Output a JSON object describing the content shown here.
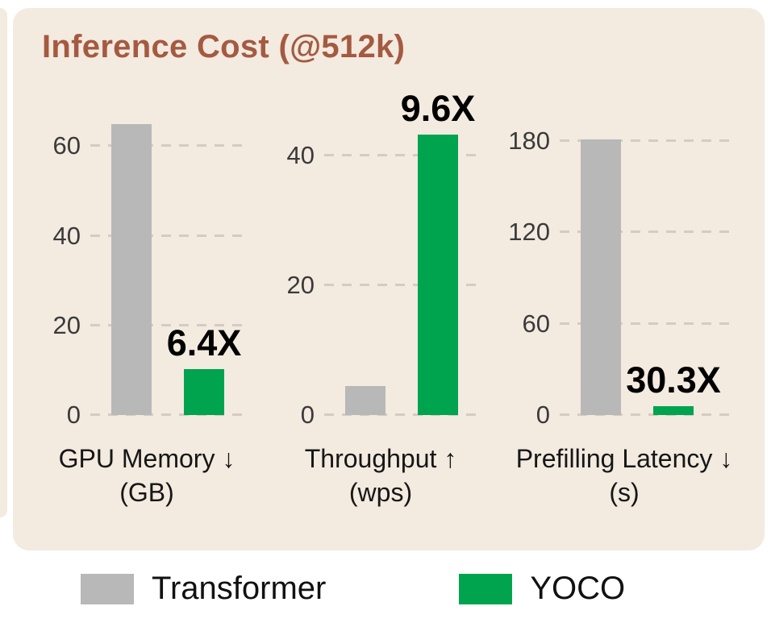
{
  "title": "Inference Cost (@512k)",
  "colors": {
    "panel_bg": "#f3eae0",
    "page_bg": "#ffffff",
    "title_text": "#a45a41",
    "transformer_bar": "#b8b8b8",
    "yoco_bar": "#00a44e",
    "gridline": "#d5cbc1",
    "tick_text": "#3a3a3a",
    "axis_label_text": "#161616",
    "annotation_text": "#000000"
  },
  "legend": {
    "items": [
      {
        "name": "transformer",
        "label": "Transformer",
        "color": "#b8b8b8"
      },
      {
        "name": "yoco",
        "label": "YOCO",
        "color": "#00a44e"
      }
    ]
  },
  "chart_data": {
    "type": "bar",
    "title": "Inference Cost (@512k)",
    "series_names": [
      "Transformer",
      "YOCO"
    ],
    "legend_position": "bottom",
    "grid": "dashed-horizontal",
    "panels": [
      {
        "id": "gpu-memory",
        "xlabel": "GPU Memory ↓",
        "xunit": "(GB)",
        "yticks": [
          0,
          20,
          40,
          60
        ],
        "ymax": 68,
        "values": [
          65,
          10.2
        ],
        "speedup_annotation": "6.4X"
      },
      {
        "id": "throughput",
        "xlabel": "Throughput ↑",
        "xunit": "(wps)",
        "yticks": [
          0,
          20,
          40
        ],
        "ymax": 47,
        "values": [
          4.5,
          43.3
        ],
        "speedup_annotation": "9.6X"
      },
      {
        "id": "prefilling-latency",
        "xlabel": "Prefilling Latency ↓",
        "xunit": "(s)",
        "yticks": [
          0,
          60,
          120,
          180
        ],
        "ymax": 200,
        "values": [
          181,
          6
        ],
        "speedup_annotation": "30.3X"
      }
    ]
  }
}
